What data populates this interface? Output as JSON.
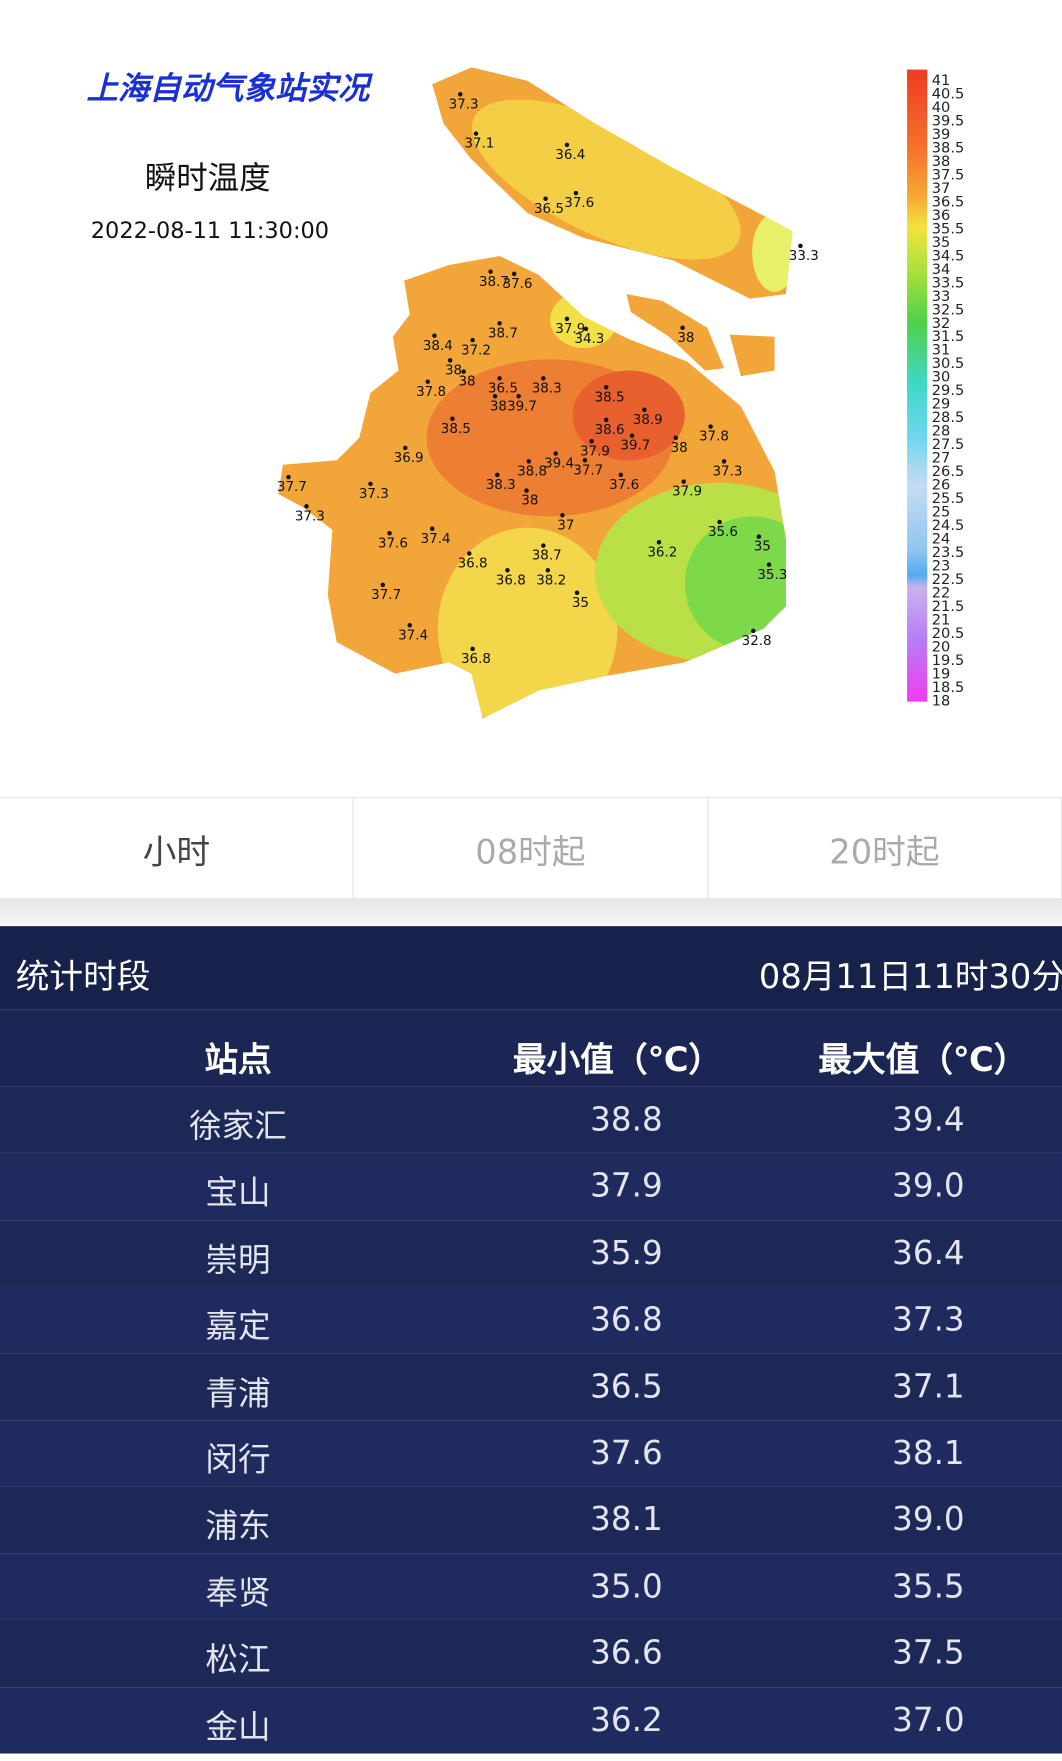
{
  "map": {
    "title": "上海自动气象站实况",
    "subtitle": "瞬时温度",
    "time": "2022-08-11 11:30:00",
    "station_labels": [
      "37.3",
      "37.1",
      "36.4",
      "36.5",
      "37.6",
      "33.3",
      "38.7",
      "37.6",
      "37.9",
      "34.3",
      "38",
      "38.4",
      "38.7",
      "37.2",
      "38",
      "38",
      "37.8",
      "36.5",
      "38.3",
      "38",
      "39.7",
      "38.5",
      "38.9",
      "38.5",
      "38.6",
      "37.8",
      "39.7",
      "38",
      "37.9",
      "39.4",
      "37.7",
      "38.8",
      "36.9",
      "37.3",
      "37.7",
      "37.3",
      "38.3",
      "37.6",
      "37.9",
      "38",
      "37.3",
      "37",
      "35.6",
      "37.6",
      "37.4",
      "35",
      "36.2",
      "38.7",
      "36.8",
      "35.3",
      "36.8",
      "38.2",
      "37.7",
      "35",
      "37.4",
      "32.8",
      "36.8"
    ],
    "legend": [
      41,
      40.5,
      40,
      39.5,
      39,
      38.5,
      38,
      37.5,
      37,
      36.5,
      36,
      35.5,
      35,
      34.5,
      34,
      33.5,
      33,
      32.5,
      32,
      31.5,
      31,
      30.5,
      30,
      29.5,
      29,
      28.5,
      28,
      27.5,
      27,
      26.5,
      26,
      25.5,
      25,
      24.5,
      24,
      23.5,
      23,
      22.5,
      22,
      21.5,
      21,
      20.5,
      20,
      19.5,
      19,
      18.5,
      18
    ]
  },
  "tabs": [
    "小时",
    "08时起",
    "20时起"
  ],
  "period": {
    "label": "统计时段",
    "value": "08月11日11时30分"
  },
  "table": {
    "columns": [
      "站点",
      "最小值（℃）",
      "最大值（℃）"
    ],
    "rows": [
      [
        "徐家汇",
        "38.8",
        "39.4"
      ],
      [
        "宝山",
        "37.9",
        "39.0"
      ],
      [
        "崇明",
        "35.9",
        "36.4"
      ],
      [
        "嘉定",
        "36.8",
        "37.3"
      ],
      [
        "青浦",
        "36.5",
        "37.1"
      ],
      [
        "闵行",
        "37.6",
        "38.1"
      ],
      [
        "浦东",
        "38.1",
        "39.0"
      ],
      [
        "奉贤",
        "35.0",
        "35.5"
      ],
      [
        "松江",
        "36.6",
        "37.5"
      ],
      [
        "金山",
        "36.2",
        "37.0"
      ]
    ]
  }
}
